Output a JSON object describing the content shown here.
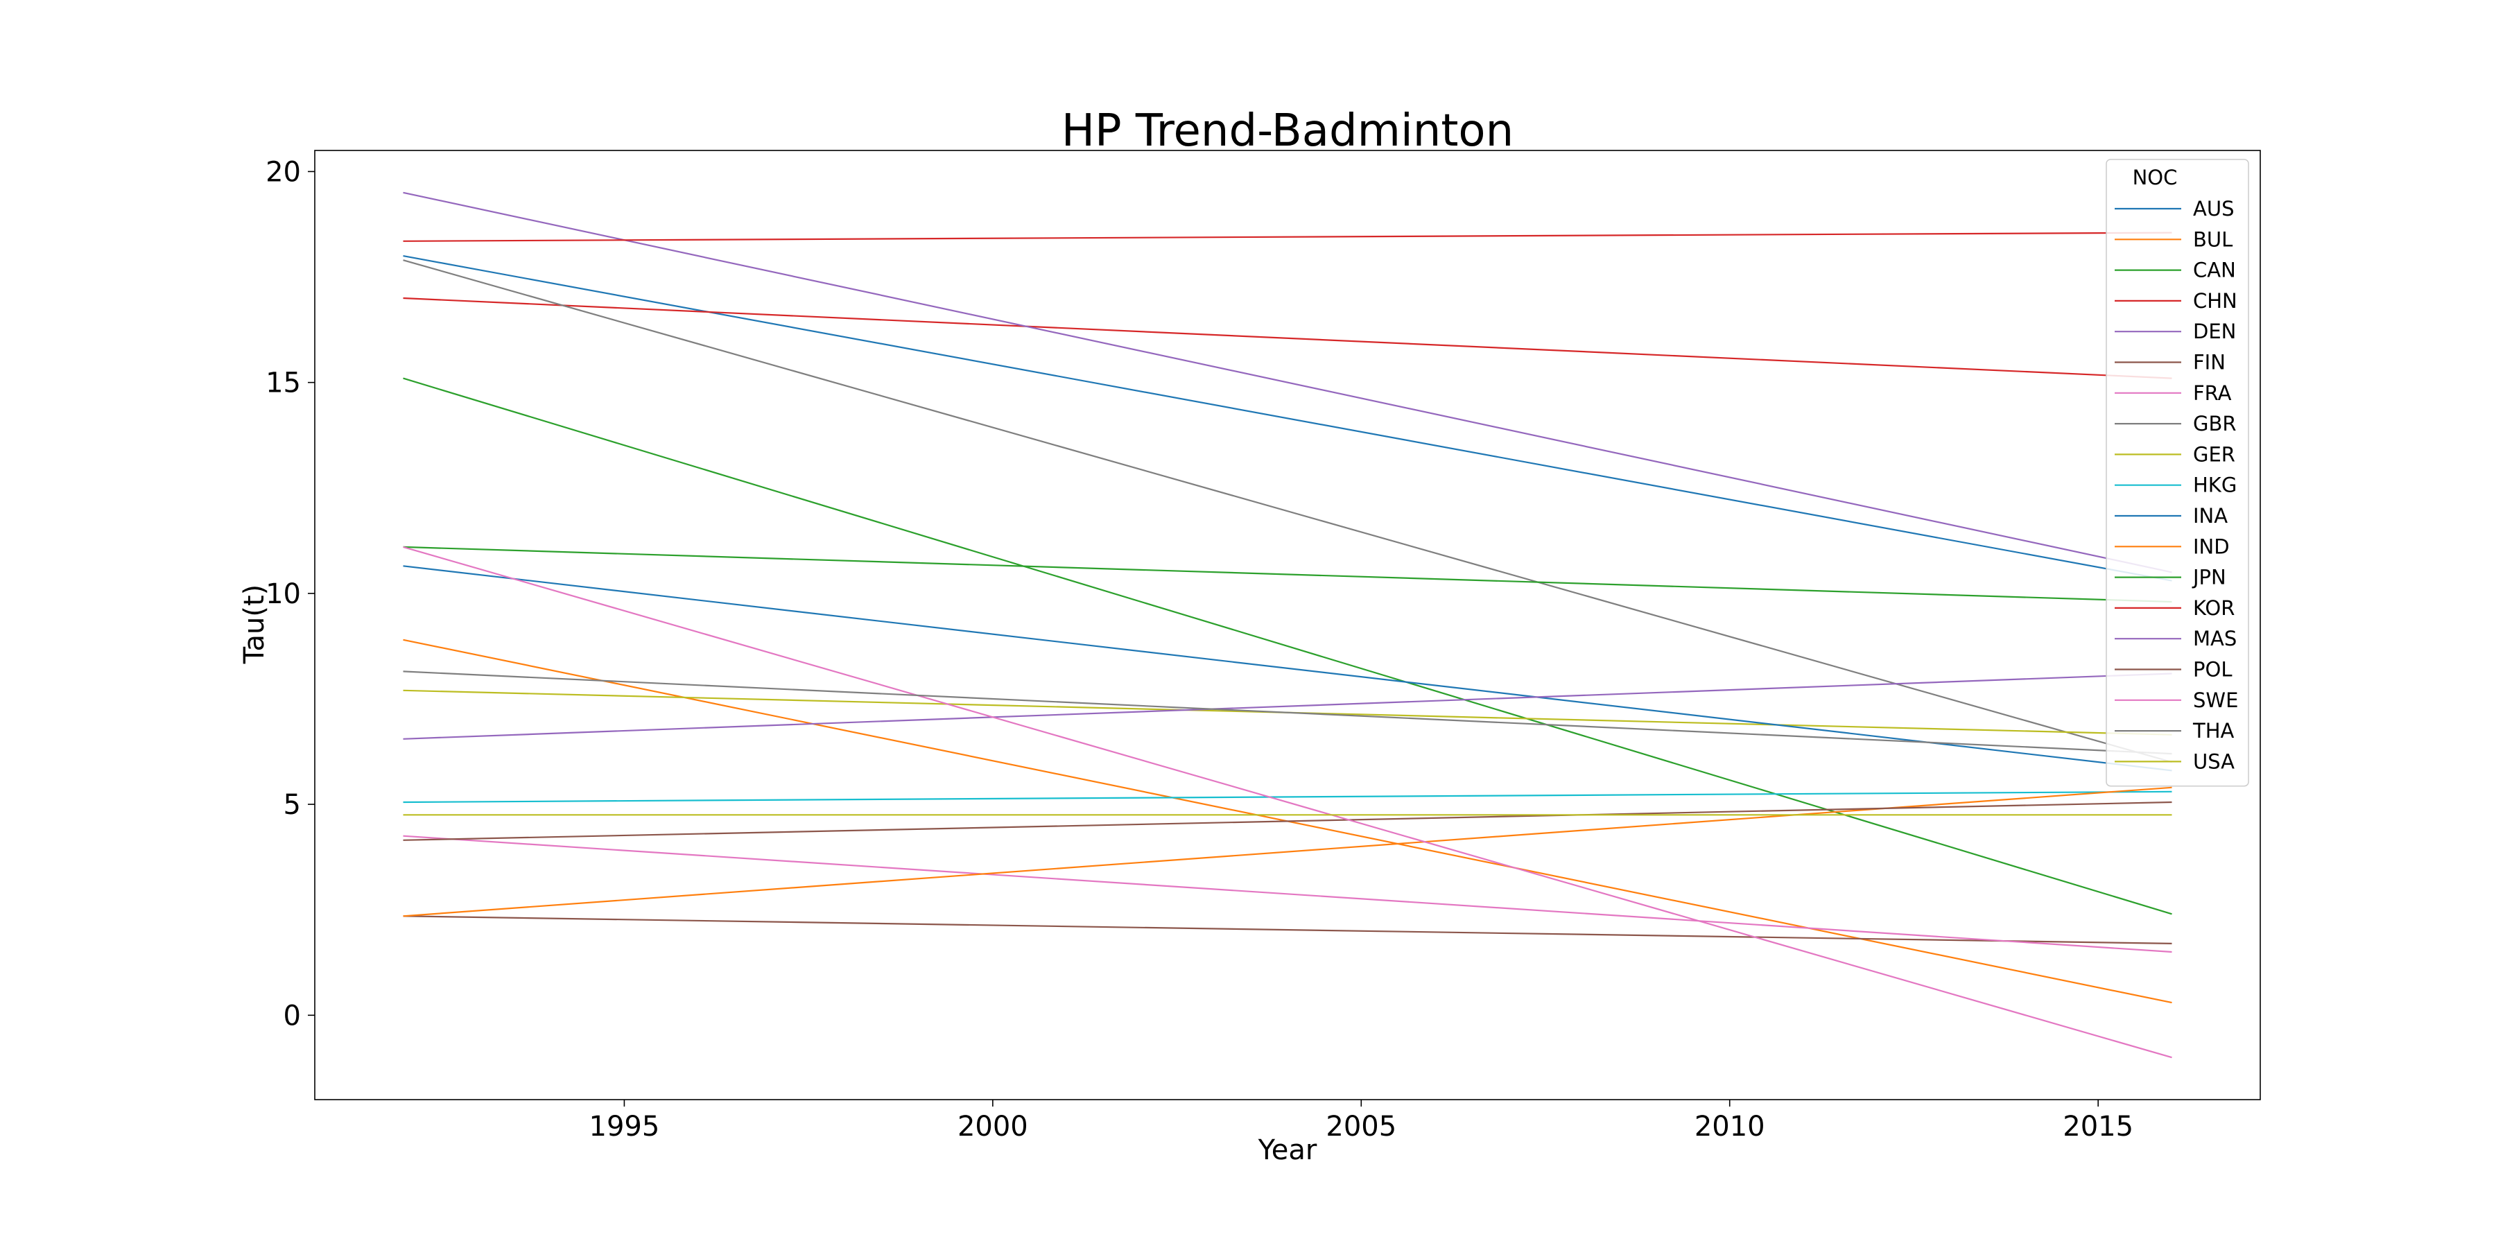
{
  "chart_data": {
    "type": "line",
    "title": "HP Trend-Badminton",
    "xlabel": "Year",
    "ylabel": "Tau(t)",
    "xlim": [
      1990.8,
      2017.2
    ],
    "ylim": [
      -2,
      20.5
    ],
    "xticks": [
      1995,
      2000,
      2005,
      2010,
      2015
    ],
    "yticks": [
      0,
      5,
      10,
      15,
      20
    ],
    "grid": false,
    "legend_title": "NOC",
    "legend_position": "top-right",
    "series": [
      {
        "name": "AUS",
        "color": "#1f77b4",
        "x": [
          1992,
          2016
        ],
        "y": [
          18.0,
          10.3
        ]
      },
      {
        "name": "BUL",
        "color": "#ff7f0e",
        "x": [
          1992,
          2016
        ],
        "y": [
          8.9,
          0.3
        ]
      },
      {
        "name": "CAN",
        "color": "#2ca02c",
        "x": [
          1992,
          2016
        ],
        "y": [
          15.1,
          2.4
        ]
      },
      {
        "name": "CHN",
        "color": "#d62728",
        "x": [
          1992,
          2016
        ],
        "y": [
          17.0,
          15.1
        ]
      },
      {
        "name": "DEN",
        "color": "#9467bd",
        "x": [
          1992,
          2016
        ],
        "y": [
          19.5,
          10.5
        ]
      },
      {
        "name": "FIN",
        "color": "#8c564b",
        "x": [
          1992,
          2016
        ],
        "y": [
          2.35,
          1.7
        ]
      },
      {
        "name": "FRA",
        "color": "#e377c2",
        "x": [
          1992,
          2016
        ],
        "y": [
          4.25,
          1.5
        ]
      },
      {
        "name": "GBR",
        "color": "#7f7f7f",
        "x": [
          1992,
          2016
        ],
        "y": [
          17.9,
          6.0
        ]
      },
      {
        "name": "GER",
        "color": "#bcbd22",
        "x": [
          1992,
          2016
        ],
        "y": [
          7.7,
          6.65
        ]
      },
      {
        "name": "HKG",
        "color": "#17becf",
        "x": [
          1992,
          2016
        ],
        "y": [
          5.05,
          5.3
        ]
      },
      {
        "name": "INA",
        "color": "#1f77b4",
        "x": [
          1992,
          2016
        ],
        "y": [
          10.65,
          5.8
        ]
      },
      {
        "name": "IND",
        "color": "#ff7f0e",
        "x": [
          1992,
          2016
        ],
        "y": [
          2.35,
          5.4
        ]
      },
      {
        "name": "JPN",
        "color": "#2ca02c",
        "x": [
          1992,
          2016
        ],
        "y": [
          11.1,
          9.8
        ]
      },
      {
        "name": "KOR",
        "color": "#d62728",
        "x": [
          1992,
          2016
        ],
        "y": [
          18.35,
          18.55
        ]
      },
      {
        "name": "MAS",
        "color": "#9467bd",
        "x": [
          1992,
          2016
        ],
        "y": [
          6.55,
          8.1
        ]
      },
      {
        "name": "POL",
        "color": "#8c564b",
        "x": [
          1992,
          2016
        ],
        "y": [
          4.15,
          5.05
        ]
      },
      {
        "name": "SWE",
        "color": "#e377c2",
        "x": [
          1992,
          2016
        ],
        "y": [
          11.1,
          -1.0
        ]
      },
      {
        "name": "THA",
        "color": "#7f7f7f",
        "x": [
          1992,
          2016
        ],
        "y": [
          8.15,
          6.2
        ]
      },
      {
        "name": "USA",
        "color": "#bcbd22",
        "x": [
          1992,
          2016
        ],
        "y": [
          4.75,
          4.75
        ]
      }
    ]
  }
}
